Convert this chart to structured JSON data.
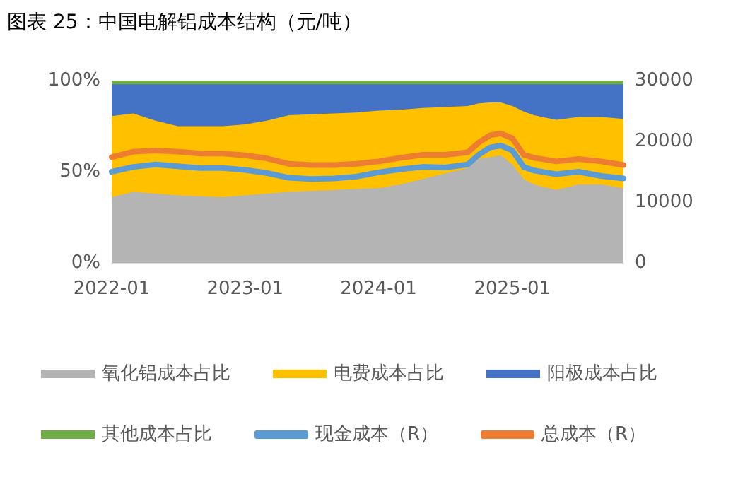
{
  "chart_data": {
    "type": "area",
    "title": "图表 25：中国电解铝成本结构（元/吨）",
    "stacked": true,
    "x": [
      "2022-01",
      "2022-03",
      "2022-05",
      "2022-07",
      "2022-09",
      "2022-11",
      "2023-01",
      "2023-03",
      "2023-05",
      "2023-07",
      "2023-09",
      "2023-11",
      "2024-01",
      "2024-03",
      "2024-05",
      "2024-07",
      "2024-09",
      "2024-10",
      "2024-11",
      "2024-12",
      "2025-01",
      "2025-02",
      "2025-03",
      "2025-05",
      "2025-07",
      "2025-09",
      "2025-11"
    ],
    "series": [
      {
        "name": "氧化铝成本占比",
        "color": "#b4b4b4",
        "values": [
          36,
          39,
          38,
          37,
          36.5,
          36,
          37,
          38,
          39,
          39.5,
          40,
          40.5,
          41,
          43,
          46,
          49,
          52,
          57,
          58,
          59,
          54,
          46,
          43,
          40,
          43,
          43,
          41
        ]
      },
      {
        "name": "电费成本占比",
        "color": "#ffc000",
        "values": [
          44.5,
          43,
          40,
          38,
          38.5,
          39,
          39,
          40,
          42,
          42,
          42,
          42,
          42.5,
          41,
          39,
          36.5,
          34,
          30.5,
          30,
          29,
          32,
          37,
          38,
          38.5,
          37,
          37,
          38
        ]
      },
      {
        "name": "阳极成本占比",
        "color": "#4472c4",
        "values": [
          17.5,
          16,
          20,
          23,
          23,
          23,
          22,
          20,
          17,
          16.5,
          16,
          15.5,
          14.5,
          14,
          13,
          12.5,
          12,
          10.5,
          10,
          10,
          12,
          15,
          17,
          19.5,
          18,
          18,
          19
        ]
      },
      {
        "name": "其他成本占比",
        "color": "#70ad47",
        "values": [
          2,
          2,
          2,
          2,
          2,
          2,
          2,
          2,
          2,
          2,
          2,
          2,
          2,
          2,
          2,
          2,
          2,
          2,
          2,
          2,
          2,
          2,
          2,
          2,
          2,
          2,
          2
        ]
      },
      {
        "name": "现金成本（R）",
        "type": "line",
        "axis": "y2",
        "color": "#5b9bd5",
        "values": [
          15000,
          15800,
          16200,
          15900,
          15600,
          15600,
          15300,
          14800,
          14000,
          13800,
          13900,
          14200,
          14900,
          15400,
          15800,
          15700,
          16200,
          17800,
          19000,
          19300,
          18500,
          15800,
          15200,
          14600,
          15000,
          14300,
          13900
        ]
      },
      {
        "name": "总成本（R）",
        "type": "line",
        "axis": "y2",
        "color": "#ed7d31",
        "values": [
          17400,
          18300,
          18500,
          18300,
          18000,
          18000,
          17700,
          17200,
          16300,
          16100,
          16100,
          16300,
          16700,
          17300,
          17800,
          17800,
          18200,
          19800,
          21000,
          21300,
          20500,
          17800,
          17300,
          16700,
          17100,
          16700,
          16100
        ]
      }
    ],
    "xlim": [
      "2022-01",
      "2025-11"
    ],
    "xticks": [
      "2022-01",
      "2023-01",
      "2024-01",
      "2025-01"
    ],
    "ylim": [
      0,
      100
    ],
    "yticks": [
      {
        "value": 0,
        "label": "0%"
      },
      {
        "value": 50,
        "label": "50%"
      },
      {
        "value": 100,
        "label": "100%"
      }
    ],
    "y2lim": [
      0,
      30000
    ],
    "y2ticks": [
      0,
      10000,
      20000,
      30000
    ],
    "legend": "bottom",
    "marker": "none",
    "line_style": "solid"
  }
}
